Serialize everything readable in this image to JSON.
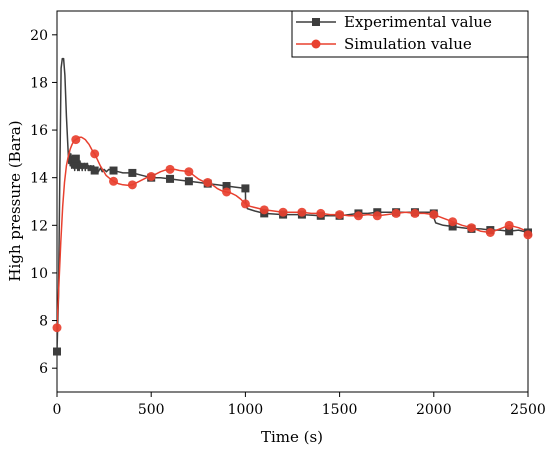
{
  "chart_data": {
    "type": "line",
    "title": "",
    "xlabel": "Time (s)",
    "ylabel": "High pressure (Bara)",
    "xlim": [
      0,
      2500
    ],
    "ylim": [
      5,
      21
    ],
    "x_ticks": [
      0,
      500,
      1000,
      1500,
      2000,
      2500
    ],
    "y_ticks": [
      6,
      8,
      10,
      12,
      14,
      16,
      18,
      20
    ],
    "grid": false,
    "legend_position": "top-right",
    "series": [
      {
        "name": "Experimental value",
        "color": "#3d3d3d",
        "marker": "square",
        "line": [
          [
            0,
            6.7
          ],
          [
            8,
            9.0
          ],
          [
            15,
            14.0
          ],
          [
            22,
            18.6
          ],
          [
            28,
            19.0
          ],
          [
            35,
            19.0
          ],
          [
            42,
            18.3
          ],
          [
            50,
            16.6
          ],
          [
            58,
            15.3
          ],
          [
            62,
            14.6
          ],
          [
            66,
            15.1
          ],
          [
            70,
            14.5
          ],
          [
            74,
            15.0
          ],
          [
            78,
            14.4
          ],
          [
            82,
            14.9
          ],
          [
            86,
            14.4
          ],
          [
            90,
            14.8
          ],
          [
            94,
            14.3
          ],
          [
            98,
            14.8
          ],
          [
            102,
            14.4
          ],
          [
            106,
            14.7
          ],
          [
            110,
            14.3
          ],
          [
            114,
            14.7
          ],
          [
            118,
            14.3
          ],
          [
            122,
            14.7
          ],
          [
            126,
            14.4
          ],
          [
            130,
            14.6
          ],
          [
            134,
            14.3
          ],
          [
            138,
            14.6
          ],
          [
            142,
            14.4
          ],
          [
            146,
            14.6
          ],
          [
            150,
            14.3
          ],
          [
            154,
            14.6
          ],
          [
            158,
            14.4
          ],
          [
            162,
            14.6
          ],
          [
            166,
            14.3
          ],
          [
            170,
            14.5
          ],
          [
            174,
            14.3
          ],
          [
            178,
            14.5
          ],
          [
            182,
            14.3
          ],
          [
            186,
            14.5
          ],
          [
            190,
            14.3
          ],
          [
            195,
            14.5
          ],
          [
            200,
            14.3
          ],
          [
            210,
            14.4
          ],
          [
            220,
            14.25
          ],
          [
            230,
            14.4
          ],
          [
            240,
            14.25
          ],
          [
            250,
            14.35
          ],
          [
            262,
            14.25
          ],
          [
            275,
            14.35
          ],
          [
            290,
            14.3
          ],
          [
            300,
            14.3
          ],
          [
            325,
            14.25
          ],
          [
            350,
            14.2
          ],
          [
            375,
            14.2
          ],
          [
            400,
            14.2
          ],
          [
            450,
            14.1
          ],
          [
            500,
            14.0
          ],
          [
            550,
            14.0
          ],
          [
            600,
            13.95
          ],
          [
            650,
            13.9
          ],
          [
            700,
            13.85
          ],
          [
            750,
            13.8
          ],
          [
            800,
            13.75
          ],
          [
            850,
            13.7
          ],
          [
            900,
            13.65
          ],
          [
            950,
            13.6
          ],
          [
            1000,
            13.55
          ],
          [
            1001,
            13.0
          ],
          [
            1010,
            12.7
          ],
          [
            1050,
            12.6
          ],
          [
            1100,
            12.5
          ],
          [
            1200,
            12.45
          ],
          [
            1300,
            12.45
          ],
          [
            1400,
            12.4
          ],
          [
            1500,
            12.4
          ],
          [
            1550,
            12.45
          ],
          [
            1600,
            12.5
          ],
          [
            1650,
            12.5
          ],
          [
            1700,
            12.55
          ],
          [
            1750,
            12.55
          ],
          [
            1800,
            12.55
          ],
          [
            1850,
            12.55
          ],
          [
            1900,
            12.55
          ],
          [
            1950,
            12.55
          ],
          [
            1990,
            12.55
          ],
          [
            2010,
            12.1
          ],
          [
            2050,
            12.0
          ],
          [
            2100,
            11.95
          ],
          [
            2150,
            11.9
          ],
          [
            2200,
            11.85
          ],
          [
            2250,
            11.85
          ],
          [
            2300,
            11.8
          ],
          [
            2350,
            11.8
          ],
          [
            2400,
            11.75
          ],
          [
            2450,
            11.8
          ],
          [
            2500,
            11.7
          ]
        ],
        "marker_points": [
          [
            0,
            6.7
          ],
          [
            100,
            14.8
          ],
          [
            200,
            14.3
          ],
          [
            300,
            14.3
          ],
          [
            400,
            14.2
          ],
          [
            500,
            14.0
          ],
          [
            600,
            13.95
          ],
          [
            700,
            13.85
          ],
          [
            800,
            13.75
          ],
          [
            900,
            13.65
          ],
          [
            1000,
            13.55
          ],
          [
            1100,
            12.5
          ],
          [
            1200,
            12.45
          ],
          [
            1300,
            12.45
          ],
          [
            1400,
            12.4
          ],
          [
            1500,
            12.4
          ],
          [
            1600,
            12.5
          ],
          [
            1700,
            12.55
          ],
          [
            1800,
            12.55
          ],
          [
            1900,
            12.55
          ],
          [
            2000,
            12.5
          ],
          [
            2100,
            11.95
          ],
          [
            2200,
            11.85
          ],
          [
            2300,
            11.8
          ],
          [
            2400,
            11.75
          ],
          [
            2500,
            11.7
          ]
        ]
      },
      {
        "name": "Simulation value",
        "color": "#e8402f",
        "marker": "circle",
        "line": [
          [
            0,
            7.7
          ],
          [
            10,
            9.5
          ],
          [
            20,
            11.3
          ],
          [
            30,
            12.8
          ],
          [
            40,
            13.8
          ],
          [
            50,
            14.5
          ],
          [
            60,
            14.9
          ],
          [
            70,
            15.2
          ],
          [
            80,
            15.4
          ],
          [
            90,
            15.55
          ],
          [
            100,
            15.6
          ],
          [
            110,
            15.65
          ],
          [
            120,
            15.7
          ],
          [
            130,
            15.7
          ],
          [
            140,
            15.65
          ],
          [
            150,
            15.6
          ],
          [
            160,
            15.5
          ],
          [
            170,
            15.4
          ],
          [
            180,
            15.25
          ],
          [
            190,
            15.1
          ],
          [
            200,
            15.0
          ],
          [
            215,
            14.75
          ],
          [
            230,
            14.5
          ],
          [
            245,
            14.3
          ],
          [
            260,
            14.1
          ],
          [
            275,
            14.0
          ],
          [
            300,
            13.85
          ],
          [
            325,
            13.75
          ],
          [
            350,
            13.7
          ],
          [
            375,
            13.68
          ],
          [
            400,
            13.7
          ],
          [
            425,
            13.8
          ],
          [
            450,
            13.9
          ],
          [
            475,
            14.0
          ],
          [
            500,
            14.05
          ],
          [
            525,
            14.15
          ],
          [
            550,
            14.25
          ],
          [
            575,
            14.32
          ],
          [
            600,
            14.35
          ],
          [
            625,
            14.35
          ],
          [
            650,
            14.3
          ],
          [
            675,
            14.28
          ],
          [
            700,
            14.25
          ],
          [
            725,
            14.1
          ],
          [
            750,
            13.95
          ],
          [
            775,
            13.85
          ],
          [
            800,
            13.8
          ],
          [
            825,
            13.7
          ],
          [
            850,
            13.55
          ],
          [
            875,
            13.45
          ],
          [
            900,
            13.4
          ],
          [
            925,
            13.35
          ],
          [
            950,
            13.25
          ],
          [
            975,
            13.1
          ],
          [
            1000,
            12.9
          ],
          [
            1025,
            12.8
          ],
          [
            1050,
            12.75
          ],
          [
            1075,
            12.7
          ],
          [
            1100,
            12.65
          ],
          [
            1150,
            12.6
          ],
          [
            1200,
            12.55
          ],
          [
            1250,
            12.55
          ],
          [
            1300,
            12.55
          ],
          [
            1350,
            12.5
          ],
          [
            1400,
            12.5
          ],
          [
            1450,
            12.45
          ],
          [
            1500,
            12.45
          ],
          [
            1550,
            12.4
          ],
          [
            1600,
            12.4
          ],
          [
            1650,
            12.45
          ],
          [
            1700,
            12.4
          ],
          [
            1750,
            12.45
          ],
          [
            1800,
            12.5
          ],
          [
            1850,
            12.55
          ],
          [
            1900,
            12.5
          ],
          [
            1950,
            12.5
          ],
          [
            2000,
            12.45
          ],
          [
            2050,
            12.3
          ],
          [
            2100,
            12.15
          ],
          [
            2150,
            12.0
          ],
          [
            2200,
            11.9
          ],
          [
            2250,
            11.75
          ],
          [
            2300,
            11.7
          ],
          [
            2350,
            11.85
          ],
          [
            2400,
            12.0
          ],
          [
            2450,
            11.9
          ],
          [
            2480,
            11.8
          ],
          [
            2500,
            11.6
          ]
        ],
        "marker_points": [
          [
            0,
            7.7
          ],
          [
            100,
            15.6
          ],
          [
            200,
            15.0
          ],
          [
            300,
            13.85
          ],
          [
            400,
            13.7
          ],
          [
            500,
            14.05
          ],
          [
            600,
            14.35
          ],
          [
            700,
            14.25
          ],
          [
            800,
            13.8
          ],
          [
            900,
            13.4
          ],
          [
            1000,
            12.9
          ],
          [
            1100,
            12.65
          ],
          [
            1200,
            12.55
          ],
          [
            1300,
            12.55
          ],
          [
            1400,
            12.5
          ],
          [
            1500,
            12.45
          ],
          [
            1600,
            12.4
          ],
          [
            1700,
            12.4
          ],
          [
            1800,
            12.5
          ],
          [
            1900,
            12.5
          ],
          [
            2000,
            12.45
          ],
          [
            2100,
            12.15
          ],
          [
            2200,
            11.9
          ],
          [
            2300,
            11.7
          ],
          [
            2400,
            12.0
          ],
          [
            2500,
            11.6
          ]
        ]
      }
    ]
  }
}
